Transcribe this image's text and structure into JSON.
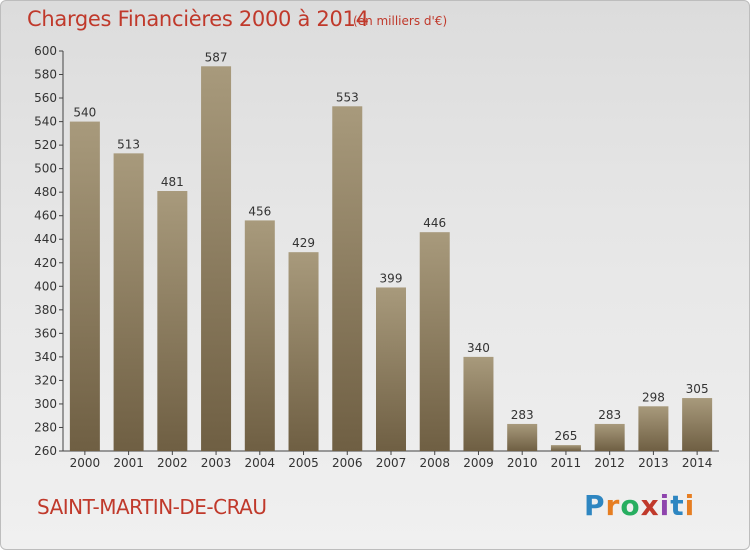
{
  "header": {
    "title": "Charges Financières 2000 à 2014",
    "subtitle": "(en milliers d'€)"
  },
  "footer": {
    "town": "SAINT-MARTIN-DE-CRAU",
    "logo_letters": [
      "P",
      "r",
      "o",
      "x",
      "i",
      "t",
      "i"
    ],
    "logo_colors": [
      "#2e86c1",
      "#e67e22",
      "#27ae60",
      "#c0392b",
      "#8e44ad",
      "#2e86c1",
      "#e67e22"
    ]
  },
  "chart_data": {
    "type": "bar",
    "categories": [
      "2000",
      "2001",
      "2002",
      "2003",
      "2004",
      "2005",
      "2006",
      "2007",
      "2008",
      "2009",
      "2010",
      "2011",
      "2012",
      "2013",
      "2014"
    ],
    "values": [
      540,
      513,
      481,
      587,
      456,
      429,
      553,
      399,
      446,
      340,
      283,
      265,
      283,
      298,
      305
    ],
    "ylim": [
      260,
      600
    ],
    "yticks": [
      260,
      280,
      300,
      320,
      340,
      360,
      380,
      400,
      420,
      440,
      460,
      480,
      500,
      520,
      540,
      560,
      580,
      600
    ],
    "grid": false,
    "bar_color_top": "#a89a7c",
    "bar_color_bottom": "#6f5f43"
  }
}
